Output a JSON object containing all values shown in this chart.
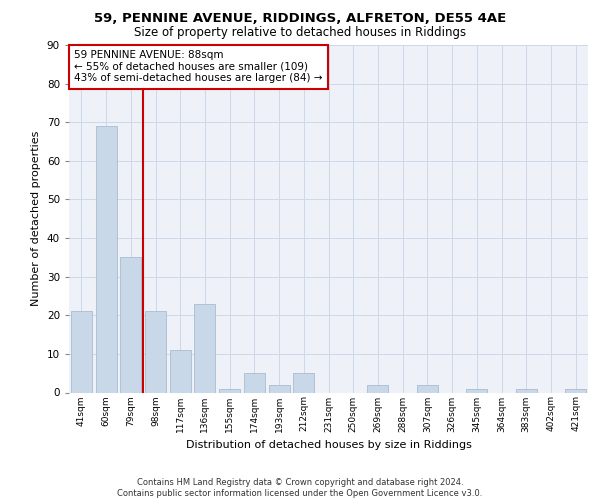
{
  "title1": "59, PENNINE AVENUE, RIDDINGS, ALFRETON, DE55 4AE",
  "title2": "Size of property relative to detached houses in Riddings",
  "xlabel": "Distribution of detached houses by size in Riddings",
  "ylabel": "Number of detached properties",
  "categories": [
    "41sqm",
    "60sqm",
    "79sqm",
    "98sqm",
    "117sqm",
    "136sqm",
    "155sqm",
    "174sqm",
    "193sqm",
    "212sqm",
    "231sqm",
    "250sqm",
    "269sqm",
    "288sqm",
    "307sqm",
    "326sqm",
    "345sqm",
    "364sqm",
    "383sqm",
    "402sqm",
    "421sqm"
  ],
  "values": [
    21,
    69,
    35,
    21,
    11,
    23,
    1,
    5,
    2,
    5,
    0,
    0,
    2,
    0,
    2,
    0,
    1,
    0,
    1,
    0,
    1
  ],
  "bar_color": "#c8d8e8",
  "bar_edge_color": "#a8bccf",
  "vline_x": 2.5,
  "vline_color": "#cc0000",
  "annotation_text": "59 PENNINE AVENUE: 88sqm\n← 55% of detached houses are smaller (109)\n43% of semi-detached houses are larger (84) →",
  "annotation_box_color": "#ffffff",
  "annotation_box_edge_color": "#cc0000",
  "ylim": [
    0,
    90
  ],
  "yticks": [
    0,
    10,
    20,
    30,
    40,
    50,
    60,
    70,
    80,
    90
  ],
  "grid_color": "#ccd8e8",
  "bg_color": "#eef2f8",
  "footer": "Contains HM Land Registry data © Crown copyright and database right 2024.\nContains public sector information licensed under the Open Government Licence v3.0."
}
